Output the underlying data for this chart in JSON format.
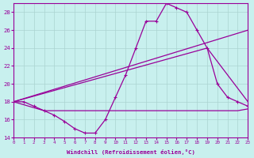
{
  "xlabel": "Windchill (Refroidissement éolien,°C)",
  "xlim": [
    0,
    23
  ],
  "ylim": [
    14,
    29
  ],
  "yticks": [
    14,
    16,
    18,
    20,
    22,
    24,
    26,
    28
  ],
  "xticks": [
    0,
    1,
    2,
    3,
    4,
    5,
    6,
    7,
    8,
    9,
    10,
    11,
    12,
    13,
    14,
    15,
    16,
    17,
    18,
    19,
    20,
    21,
    22,
    23
  ],
  "background_color": "#c8f0ee",
  "grid_color": "#aad4d0",
  "line_color": "#990099",
  "line1_x": [
    0,
    1,
    2,
    3,
    4,
    5,
    6,
    7,
    8,
    9,
    10,
    11,
    12,
    13,
    14,
    15,
    16,
    17,
    18,
    19,
    20,
    21,
    22,
    23
  ],
  "line1_y": [
    18.0,
    18.0,
    17.5,
    17.0,
    16.5,
    15.8,
    15.0,
    14.5,
    14.5,
    16.0,
    18.5,
    21.0,
    24.0,
    27.0,
    27.0,
    29.0,
    28.5,
    28.0,
    26.0,
    24.0,
    20.0,
    18.5,
    18.0,
    17.5
  ],
  "line2_x": [
    0,
    3,
    22,
    23
  ],
  "line2_y": [
    18.0,
    17.0,
    17.0,
    17.2
  ],
  "line3_x": [
    0,
    19,
    23
  ],
  "line3_y": [
    18.0,
    24.0,
    18.0
  ],
  "line4_x": [
    0,
    23
  ],
  "line4_y": [
    18.0,
    26.0
  ]
}
